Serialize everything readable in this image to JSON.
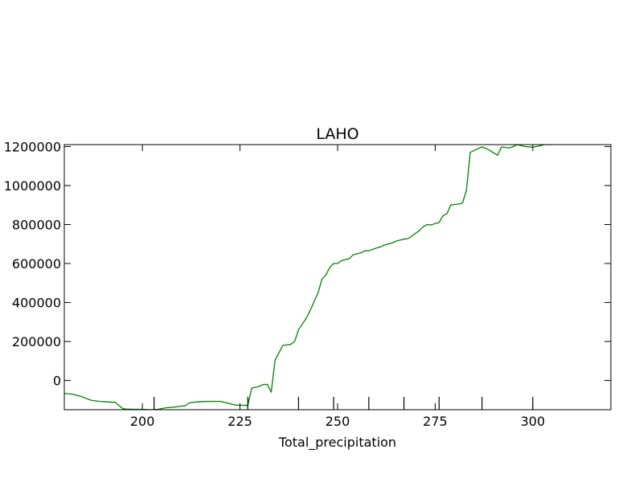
{
  "chart_data": {
    "type": "line",
    "title": "LAHO",
    "xlabel": "Total_precipitation",
    "ylabel": "",
    "xlim": [
      180,
      320
    ],
    "ylim": [
      -150000,
      1210000
    ],
    "xticks": [
      200,
      225,
      250,
      275,
      300
    ],
    "yticks": [
      0,
      200000,
      400000,
      600000,
      800000,
      1000000,
      1200000
    ],
    "xtick_labels": [
      "200",
      "225",
      "250",
      "275",
      "300"
    ],
    "ytick_labels": [
      "0",
      "200000",
      "400000",
      "600000",
      "800000",
      "1000000",
      "1200000"
    ],
    "grid": false,
    "legend": "none",
    "minor_ticks_x": [
      203,
      227,
      240,
      249,
      258,
      267,
      276,
      287,
      300
    ],
    "series": [
      {
        "color": "#008000",
        "x": [
          180,
          182,
          184,
          186,
          187,
          189,
          191,
          193,
          195,
          196,
          198,
          200,
          202,
          204,
          206,
          208,
          210,
          211,
          212,
          214,
          216,
          218,
          220,
          222,
          224,
          225,
          227,
          228,
          230,
          231,
          232,
          233,
          234,
          236,
          237,
          238,
          239,
          240,
          241,
          242,
          243,
          245,
          246,
          247,
          248,
          249,
          250,
          251,
          252,
          253,
          254,
          256,
          257,
          258,
          260,
          261,
          262,
          263,
          264,
          265,
          266,
          267,
          268,
          269,
          270,
          271,
          272,
          273,
          274,
          275,
          276,
          277,
          278,
          279,
          280,
          281,
          282,
          283,
          284,
          286,
          287,
          288,
          289,
          291,
          292,
          293,
          294,
          295,
          296,
          298,
          300,
          302,
          303,
          304,
          305
        ],
        "values": [
          -67000,
          -70000,
          -80000,
          -95000,
          -102000,
          -107000,
          -110000,
          -112000,
          -145000,
          -147000,
          -148000,
          -148000,
          -150000,
          -148000,
          -140000,
          -137000,
          -132000,
          -130000,
          -115000,
          -110000,
          -108000,
          -107000,
          -107000,
          -117000,
          -127000,
          -127000,
          -128000,
          -40000,
          -30000,
          -20000,
          -20000,
          -60000,
          105000,
          180000,
          182000,
          185000,
          200000,
          260000,
          290000,
          320000,
          360000,
          450000,
          520000,
          540000,
          580000,
          600000,
          600000,
          615000,
          620000,
          625000,
          645000,
          655000,
          665000,
          665000,
          680000,
          685000,
          695000,
          700000,
          705000,
          715000,
          720000,
          725000,
          728000,
          740000,
          755000,
          770000,
          790000,
          800000,
          798000,
          805000,
          810000,
          845000,
          855000,
          900000,
          903000,
          905000,
          910000,
          975000,
          1170000,
          1190000,
          1198000,
          1190000,
          1180000,
          1155000,
          1198000,
          1195000,
          1193000,
          1200000,
          1210000,
          1200000,
          1197000,
          1205000,
          1210000,
          1210000,
          1210000
        ]
      }
    ]
  }
}
